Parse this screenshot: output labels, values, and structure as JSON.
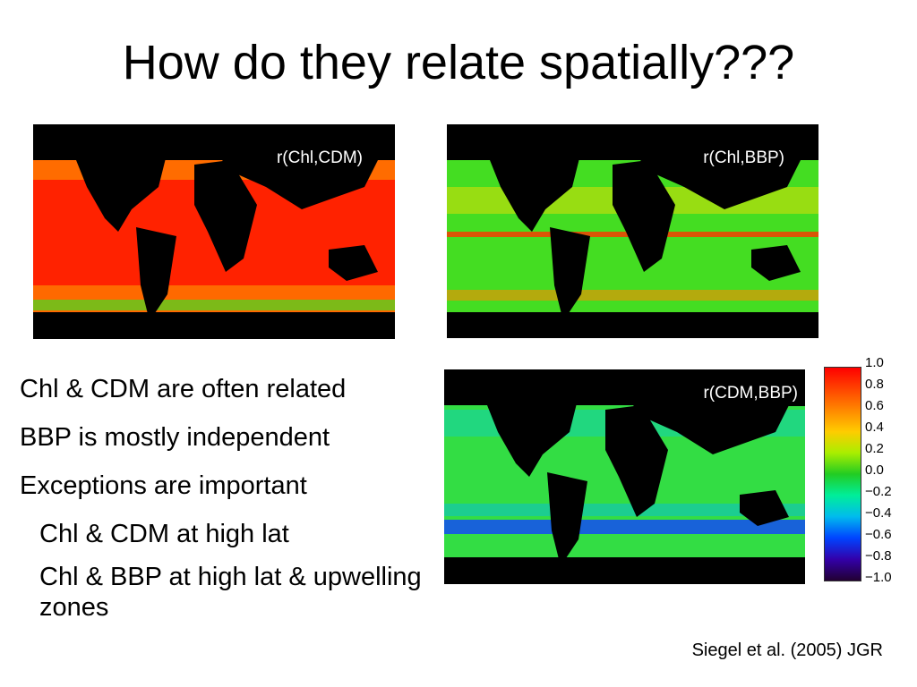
{
  "slide": {
    "title": "How do they relate spatially???",
    "bullets": [
      "Chl & CDM are often related",
      "BBP is mostly independent",
      "Exceptions are important"
    ],
    "sub_bullets": [
      "Chl & CDM at high lat",
      "Chl & BBP at high lat & upwelling zones"
    ],
    "citation": "Siegel et al. (2005) JGR"
  },
  "maps": [
    {
      "label": "r(Chl,CDM)",
      "dominant_color": "#ff1a00"
    },
    {
      "label": "r(Chl,BBP)",
      "dominant_color": "#44dd22"
    },
    {
      "label": "r(CDM,BBP)",
      "dominant_color": "#33dd44"
    }
  ],
  "colorbar": {
    "ticks": [
      "1.0",
      "0.8",
      "0.6",
      "0.4",
      "0.2",
      "0.0",
      "−0.2",
      "−0.4",
      "−0.6",
      "−0.8",
      "−1.0"
    ],
    "colors": [
      "#ff0000",
      "#ff4400",
      "#ff8800",
      "#ffcc00",
      "#aaee00",
      "#22cc22",
      "#00ee99",
      "#00bbee",
      "#0044ff",
      "#3300aa",
      "#220033"
    ]
  }
}
